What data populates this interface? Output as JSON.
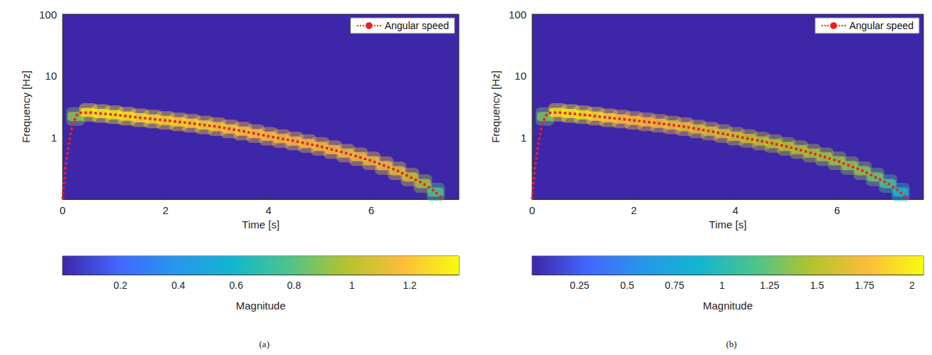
{
  "chart_data": [
    {
      "type": "heatmap",
      "caption": "(a)",
      "x_label": "Time [s]",
      "y_label": "Frequency [Hz]",
      "log": "y",
      "grid": false,
      "legend": "upper right",
      "xlim": [
        0,
        7.7
      ],
      "xticks": [
        0,
        2,
        4,
        6
      ],
      "ylim": [
        0.1,
        100
      ],
      "yticks": [
        1,
        10,
        100
      ],
      "cells": {
        "x": [
          0.25,
          0.5,
          0.75,
          1.0,
          1.25,
          1.5,
          1.75,
          2.0,
          2.25,
          2.5,
          2.75,
          3.0,
          3.25,
          3.5,
          3.75,
          4.0,
          4.25,
          4.5,
          4.75,
          5.0,
          5.25,
          5.5,
          5.75,
          6.0,
          6.25,
          6.5,
          6.75,
          7.0,
          7.25
        ],
        "y": [
          2.2,
          2.55,
          2.45,
          2.35,
          2.22,
          2.1,
          2.0,
          1.9,
          1.8,
          1.7,
          1.6,
          1.5,
          1.38,
          1.27,
          1.16,
          1.05,
          0.96,
          0.88,
          0.8,
          0.72,
          0.64,
          0.56,
          0.49,
          0.42,
          0.35,
          0.29,
          0.23,
          0.18,
          0.13
        ],
        "values": [
          0.9,
          1.3,
          1.33,
          1.32,
          1.3,
          1.28,
          1.27,
          1.26,
          1.25,
          1.24,
          1.23,
          1.22,
          1.21,
          1.2,
          1.19,
          1.18,
          1.17,
          1.16,
          1.16,
          1.15,
          1.15,
          1.14,
          1.14,
          1.13,
          1.12,
          1.1,
          1.05,
          0.95,
          0.8
        ]
      },
      "series": [
        {
          "name": "Angular speed",
          "type": "line",
          "color": "#f01e1e",
          "line_style": "dotted",
          "x": [
            0.0,
            0.05,
            0.1,
            0.15,
            0.2,
            0.3,
            0.5,
            1.0,
            1.5,
            2.0,
            2.5,
            3.0,
            3.5,
            4.0,
            4.5,
            5.0,
            5.5,
            6.0,
            6.5,
            7.0,
            7.2,
            7.4
          ],
          "values": [
            0.1,
            0.3,
            0.6,
            1.1,
            1.7,
            2.5,
            2.55,
            2.35,
            2.1,
            1.9,
            1.7,
            1.5,
            1.27,
            1.05,
            0.88,
            0.72,
            0.56,
            0.42,
            0.29,
            0.18,
            0.14,
            0.1
          ]
        }
      ],
      "colorbar": {
        "label": "Magnitude",
        "range": [
          0,
          1.37
        ],
        "ticks": [
          0.2,
          0.4,
          0.6,
          0.8,
          1,
          1.2
        ]
      }
    },
    {
      "type": "heatmap",
      "caption": "(b)",
      "x_label": "Time [s]",
      "y_label": "Frequency [Hz]",
      "log": "y",
      "grid": false,
      "legend": "upper right",
      "xlim": [
        0,
        7.7
      ],
      "xticks": [
        0,
        2,
        4,
        6
      ],
      "ylim": [
        0.1,
        100
      ],
      "yticks": [
        1,
        10,
        100
      ],
      "cells": {
        "x": [
          0.25,
          0.5,
          0.75,
          1.0,
          1.25,
          1.5,
          1.75,
          2.0,
          2.25,
          2.5,
          2.75,
          3.0,
          3.25,
          3.5,
          3.75,
          4.0,
          4.25,
          4.5,
          4.75,
          5.0,
          5.25,
          5.5,
          5.75,
          6.0,
          6.25,
          6.5,
          6.75,
          7.0,
          7.25
        ],
        "y": [
          2.2,
          2.55,
          2.45,
          2.35,
          2.22,
          2.1,
          2.0,
          1.9,
          1.8,
          1.7,
          1.6,
          1.5,
          1.38,
          1.27,
          1.16,
          1.05,
          0.96,
          0.88,
          0.8,
          0.72,
          0.64,
          0.56,
          0.49,
          0.42,
          0.35,
          0.29,
          0.23,
          0.18,
          0.13
        ],
        "values": [
          1.3,
          1.95,
          2.0,
          1.95,
          1.9,
          1.85,
          1.8,
          1.78,
          1.75,
          1.72,
          1.7,
          1.68,
          1.65,
          1.62,
          1.6,
          1.58,
          1.55,
          1.52,
          1.5,
          1.48,
          1.46,
          1.44,
          1.42,
          1.4,
          1.38,
          1.35,
          1.28,
          1.15,
          0.95
        ]
      },
      "series": [
        {
          "name": "Angular speed",
          "type": "line",
          "color": "#f01e1e",
          "line_style": "dotted",
          "x": [
            0.0,
            0.05,
            0.1,
            0.15,
            0.2,
            0.3,
            0.5,
            1.0,
            1.5,
            2.0,
            2.5,
            3.0,
            3.5,
            4.0,
            4.5,
            5.0,
            5.5,
            6.0,
            6.5,
            7.0,
            7.2,
            7.4
          ],
          "values": [
            0.1,
            0.3,
            0.6,
            1.1,
            1.7,
            2.5,
            2.55,
            2.35,
            2.1,
            1.9,
            1.7,
            1.5,
            1.27,
            1.05,
            0.88,
            0.72,
            0.56,
            0.42,
            0.29,
            0.18,
            0.14,
            0.1
          ]
        }
      ],
      "colorbar": {
        "label": "Magnitude",
        "range": [
          0,
          2.06
        ],
        "ticks": [
          0.25,
          0.5,
          0.75,
          1,
          1.25,
          1.5,
          1.75,
          2
        ]
      }
    }
  ]
}
